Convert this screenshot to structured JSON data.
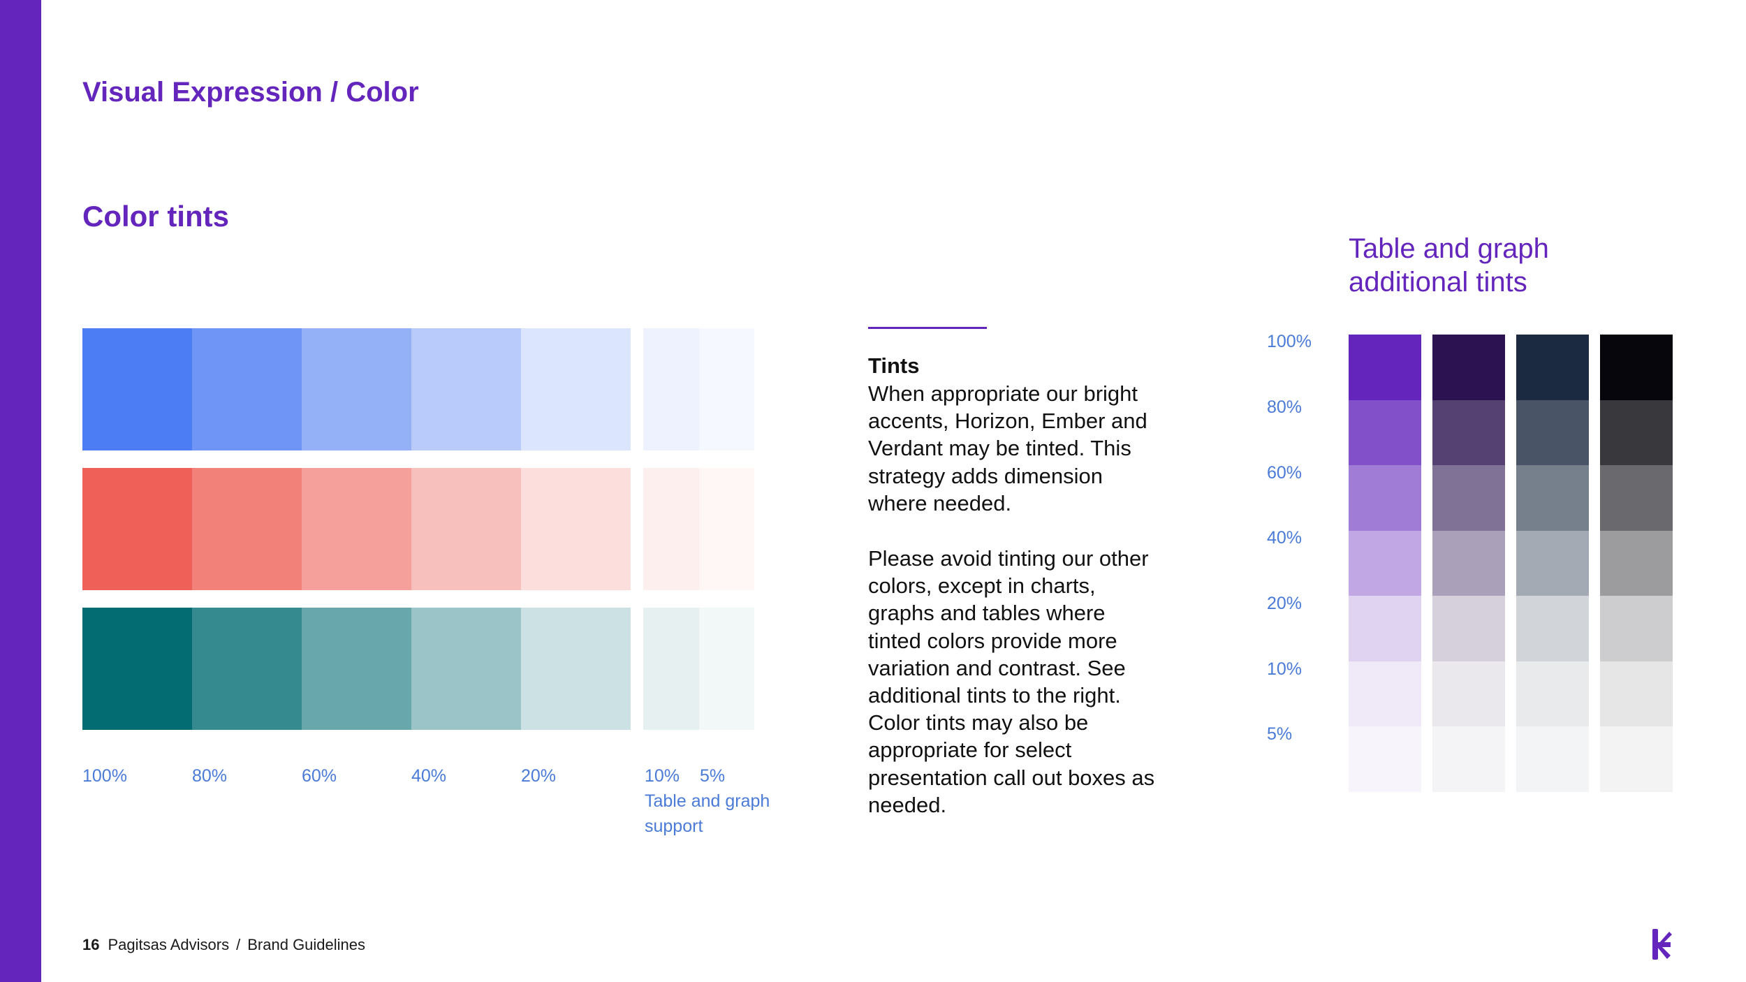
{
  "colors": {
    "brand_purple": "#6325BB",
    "label_blue": "#4A7BD6",
    "text_dark": "#111111"
  },
  "header": {
    "section_title": "Visual Expression / Color"
  },
  "main": {
    "heading": "Color tints",
    "swatch_rows": [
      {
        "name": "Horizon",
        "colors": [
          "#4C7DF4",
          "#6F96F6",
          "#94B1F8",
          "#B9CBFA",
          "#DBE5FD",
          "#EEF2FE",
          "#F6F8FF"
        ]
      },
      {
        "name": "Ember",
        "colors": [
          "#EF6158",
          "#F2817A",
          "#F5A09B",
          "#F8C0BC",
          "#FCDFDD",
          "#FDEFEE",
          "#FEF7F6"
        ]
      },
      {
        "name": "Verdant",
        "colors": [
          "#036C73",
          "#358A8F",
          "#68A7AB",
          "#9AC4C7",
          "#CCE1E3",
          "#E6F0F1",
          "#F2F8F8"
        ]
      }
    ],
    "tint_labels": [
      "100%",
      "80%",
      "60%",
      "40%",
      "20%",
      "10%",
      "5%"
    ],
    "support_note": "Table and graph support"
  },
  "tints_text": {
    "title": "Tints",
    "body_1": "When appropriate our bright accents, Horizon, Ember and Verdant may be tinted. This strategy adds dimension where needed.",
    "body_2": "Please avoid tinting our other colors, except in charts, graphs and tables where tinted colors provide more variation and contrast. See additional tints to the right. Color tints may also be appropriate for select presentation call out boxes as needed."
  },
  "additional_tints": {
    "title": "Table and graph additional tints",
    "percent_labels": [
      "100%",
      "80%",
      "60%",
      "40%",
      "20%",
      "10%",
      "5%"
    ],
    "columns": [
      [
        "#6325BB",
        "#8250C9",
        "#A17CD6",
        "#C1A8E4",
        "#E0D3F1",
        "#EFE9F8",
        "#F7F4FC"
      ],
      [
        "#2C1250",
        "#564173",
        "#807196",
        "#ABA0B9",
        "#D5D0DC",
        "#EAE7ED",
        "#F4F3F6"
      ],
      [
        "#1B2A40",
        "#495566",
        "#767F8C",
        "#A4AAB3",
        "#D1D4D9",
        "#E8EAEC",
        "#F3F4F5"
      ],
      [
        "#07060D",
        "#39383D",
        "#6A6A6E",
        "#9C9B9E",
        "#CDCDCF",
        "#E6E6E7",
        "#F3F3F3"
      ]
    ]
  },
  "footer": {
    "page_number": "16",
    "company": "Pagitsas Advisors",
    "separator": "/",
    "document": "Brand Guidelines"
  },
  "logo": {
    "icon": "brand-k-logo-icon"
  }
}
